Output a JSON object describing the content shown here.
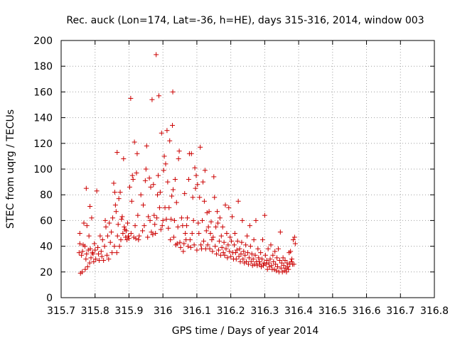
{
  "chart_data": {
    "type": "scatter",
    "title": "Rec. auck (Lon=174, Lat=-36, h=HE), days 315-316, 2014, window 003",
    "xlabel": "GPS time / Days of year 2014",
    "ylabel": "STEC from uqrg / TECUs",
    "xlim": [
      315.7,
      316.8
    ],
    "ylim": [
      0,
      200
    ],
    "xticks": [
      "315.7",
      "315.8",
      "315.9",
      "316",
      "316.1",
      "316.2",
      "316.3",
      "316.4",
      "316.5",
      "316.6",
      "316.7",
      "316.8"
    ],
    "yticks": [
      "0",
      "20",
      "40",
      "60",
      "80",
      "100",
      "120",
      "140",
      "160",
      "180",
      "200"
    ],
    "grid": true,
    "marker": "plus",
    "color": "#cc0000",
    "series": [
      {
        "points": [
          [
            315.753,
            35
          ],
          [
            315.755,
            42
          ],
          [
            315.755,
            50
          ],
          [
            315.757,
            19
          ],
          [
            315.76,
            33
          ],
          [
            315.762,
            20
          ],
          [
            315.763,
            36
          ],
          [
            315.765,
            41
          ],
          [
            315.767,
            58
          ],
          [
            315.77,
            40
          ],
          [
            315.771,
            22
          ],
          [
            315.773,
            30
          ],
          [
            315.774,
            85
          ],
          [
            315.775,
            34
          ],
          [
            315.776,
            56
          ],
          [
            315.778,
            24
          ],
          [
            315.78,
            37
          ],
          [
            315.782,
            48
          ],
          [
            315.784,
            27
          ],
          [
            315.785,
            71
          ],
          [
            315.786,
            38
          ],
          [
            315.788,
            31
          ],
          [
            315.79,
            62
          ],
          [
            315.792,
            35
          ],
          [
            315.794,
            34
          ],
          [
            315.796,
            28
          ],
          [
            315.798,
            42
          ],
          [
            315.8,
            37
          ],
          [
            315.802,
            30
          ],
          [
            315.805,
            83
          ],
          [
            315.808,
            39
          ],
          [
            315.81,
            34
          ],
          [
            315.812,
            29
          ],
          [
            315.815,
            48
          ],
          [
            315.818,
            36
          ],
          [
            315.82,
            32
          ],
          [
            315.822,
            45
          ],
          [
            315.825,
            29
          ],
          [
            315.828,
            40
          ],
          [
            315.83,
            60
          ],
          [
            315.832,
            55
          ],
          [
            315.835,
            33
          ],
          [
            315.837,
            48
          ],
          [
            315.84,
            30
          ],
          [
            315.842,
            58
          ],
          [
            315.845,
            43
          ],
          [
            315.848,
            51
          ],
          [
            315.85,
            35
          ],
          [
            315.852,
            62
          ],
          [
            315.855,
            89
          ],
          [
            315.857,
            40
          ],
          [
            315.858,
            82
          ],
          [
            315.86,
            72
          ],
          [
            315.862,
            67
          ],
          [
            315.864,
            35
          ],
          [
            315.865,
            113
          ],
          [
            315.866,
            48
          ],
          [
            315.868,
            57
          ],
          [
            315.87,
            77
          ],
          [
            315.872,
            40
          ],
          [
            315.874,
            82
          ],
          [
            315.876,
            45
          ],
          [
            315.878,
            61
          ],
          [
            315.88,
            63
          ],
          [
            315.882,
            50
          ],
          [
            315.884,
            108
          ],
          [
            315.886,
            55
          ],
          [
            315.888,
            53
          ],
          [
            315.89,
            47
          ],
          [
            315.892,
            52
          ],
          [
            315.894,
            45
          ],
          [
            315.896,
            58
          ],
          [
            315.898,
            48
          ],
          [
            315.9,
            46
          ],
          [
            315.902,
            86
          ],
          [
            315.905,
            155
          ],
          [
            315.906,
            50
          ],
          [
            315.908,
            75
          ],
          [
            315.91,
            95
          ],
          [
            315.912,
            92
          ],
          [
            315.914,
            47
          ],
          [
            315.916,
            121
          ],
          [
            315.918,
            56
          ],
          [
            315.92,
            46
          ],
          [
            315.922,
            97
          ],
          [
            315.924,
            112
          ],
          [
            315.926,
            64
          ],
          [
            315.928,
            45
          ],
          [
            315.93,
            48
          ],
          [
            315.935,
            80
          ],
          [
            315.94,
            52
          ],
          [
            315.942,
            72
          ],
          [
            315.945,
            56
          ],
          [
            315.948,
            91
          ],
          [
            315.95,
            100
          ],
          [
            315.952,
            118
          ],
          [
            315.955,
            47
          ],
          [
            315.957,
            63
          ],
          [
            315.96,
            93
          ],
          [
            315.962,
            60
          ],
          [
            315.964,
            86
          ],
          [
            315.966,
            51
          ],
          [
            315.968,
            154
          ],
          [
            315.97,
            49
          ],
          [
            315.972,
            88
          ],
          [
            315.974,
            64
          ],
          [
            315.976,
            57
          ],
          [
            315.978,
            50
          ],
          [
            315.98,
            189
          ],
          [
            315.982,
            62
          ],
          [
            315.984,
            80
          ],
          [
            315.986,
            95
          ],
          [
            315.988,
            157
          ],
          [
            315.99,
            70
          ],
          [
            315.992,
            82
          ],
          [
            315.994,
            53
          ],
          [
            315.996,
            128
          ],
          [
            315.998,
            56
          ],
          [
            316.0,
            60
          ],
          [
            316.002,
            99
          ],
          [
            316.004,
            110
          ],
          [
            316.006,
            70
          ],
          [
            316.008,
            104
          ],
          [
            316.01,
            61
          ],
          [
            316.012,
            130
          ],
          [
            316.014,
            90
          ],
          [
            316.016,
            54
          ],
          [
            316.018,
            70
          ],
          [
            316.02,
            122
          ],
          [
            316.022,
            45
          ],
          [
            316.024,
            61
          ],
          [
            316.026,
            79
          ],
          [
            316.028,
            134
          ],
          [
            316.029,
            160
          ],
          [
            316.03,
            84
          ],
          [
            316.032,
            47
          ],
          [
            316.034,
            60
          ],
          [
            316.036,
            92
          ],
          [
            316.038,
            41
          ],
          [
            316.04,
            74
          ],
          [
            316.042,
            42
          ],
          [
            316.044,
            55
          ],
          [
            316.046,
            108
          ],
          [
            316.048,
            114
          ],
          [
            316.05,
            43
          ],
          [
            316.052,
            39
          ],
          [
            316.055,
            62
          ],
          [
            316.058,
            56
          ],
          [
            316.06,
            36
          ],
          [
            316.062,
            42
          ],
          [
            316.064,
            81
          ],
          [
            316.066,
            50
          ],
          [
            316.068,
            45
          ],
          [
            316.07,
            56
          ],
          [
            316.072,
            62
          ],
          [
            316.074,
            40
          ],
          [
            316.076,
            92
          ],
          [
            316.078,
            112
          ],
          [
            316.08,
            45
          ],
          [
            316.082,
            39
          ],
          [
            316.084,
            112
          ],
          [
            316.086,
            50
          ],
          [
            316.088,
            78
          ],
          [
            316.09,
            60
          ],
          [
            316.092,
            41
          ],
          [
            316.094,
            101
          ],
          [
            316.096,
            85
          ],
          [
            316.098,
            95
          ],
          [
            316.1,
            37
          ],
          [
            316.102,
            88
          ],
          [
            316.104,
            58
          ],
          [
            316.106,
            50
          ],
          [
            316.108,
            78
          ],
          [
            316.11,
            117
          ],
          [
            316.112,
            41
          ],
          [
            316.114,
            38
          ],
          [
            316.116,
            60
          ],
          [
            316.118,
            90
          ],
          [
            316.12,
            44
          ],
          [
            316.122,
            75
          ],
          [
            316.124,
            99
          ],
          [
            316.126,
            38
          ],
          [
            316.128,
            52
          ],
          [
            316.13,
            66
          ],
          [
            316.132,
            41
          ],
          [
            316.134,
            55
          ],
          [
            316.136,
            67
          ],
          [
            316.138,
            38
          ],
          [
            316.14,
            50
          ],
          [
            316.142,
            59
          ],
          [
            316.144,
            45
          ],
          [
            316.146,
            36
          ],
          [
            316.148,
            47
          ],
          [
            316.15,
            94
          ],
          [
            316.152,
            78
          ],
          [
            316.154,
            40
          ],
          [
            316.156,
            55
          ],
          [
            316.158,
            34
          ],
          [
            316.16,
            67
          ],
          [
            316.162,
            58
          ],
          [
            316.164,
            37
          ],
          [
            316.166,
            44
          ],
          [
            316.168,
            62
          ],
          [
            316.17,
            33
          ],
          [
            316.172,
            48
          ],
          [
            316.174,
            39
          ],
          [
            316.176,
            55
          ],
          [
            316.178,
            35
          ],
          [
            316.18,
            43
          ],
          [
            316.182,
            33
          ],
          [
            316.184,
            72
          ],
          [
            316.186,
            38
          ],
          [
            316.188,
            50
          ],
          [
            316.19,
            31
          ],
          [
            316.192,
            41
          ],
          [
            316.194,
            70
          ],
          [
            316.196,
            36
          ],
          [
            316.198,
            47
          ],
          [
            316.2,
            32
          ],
          [
            316.202,
            44
          ],
          [
            316.204,
            63
          ],
          [
            316.206,
            35
          ],
          [
            316.208,
            30
          ],
          [
            316.21,
            41
          ],
          [
            316.212,
            50
          ],
          [
            316.214,
            35
          ],
          [
            316.216,
            30
          ],
          [
            316.218,
            37
          ],
          [
            316.22,
            44
          ],
          [
            316.222,
            75
          ],
          [
            316.224,
            32
          ],
          [
            316.226,
            38
          ],
          [
            316.228,
            28
          ],
          [
            316.23,
            34
          ],
          [
            316.232,
            43
          ],
          [
            316.234,
            60
          ],
          [
            316.236,
            30
          ],
          [
            316.238,
            36
          ],
          [
            316.24,
            27
          ],
          [
            316.242,
            33
          ],
          [
            316.244,
            41
          ],
          [
            316.246,
            28
          ],
          [
            316.248,
            48
          ],
          [
            316.25,
            35
          ],
          [
            316.252,
            26
          ],
          [
            316.254,
            31
          ],
          [
            316.256,
            56
          ],
          [
            316.258,
            40
          ],
          [
            316.26,
            28
          ],
          [
            316.262,
            34
          ],
          [
            316.264,
            25
          ],
          [
            316.266,
            30
          ],
          [
            316.268,
            45
          ],
          [
            316.27,
            26
          ],
          [
            316.272,
            33
          ],
          [
            316.274,
            60
          ],
          [
            316.276,
            28
          ],
          [
            316.278,
            25
          ],
          [
            316.28,
            38
          ],
          [
            316.282,
            31
          ],
          [
            316.284,
            28
          ],
          [
            316.286,
            26
          ],
          [
            316.288,
            35
          ],
          [
            316.29,
            24
          ],
          [
            316.292,
            30
          ],
          [
            316.294,
            45
          ],
          [
            316.296,
            25
          ],
          [
            316.298,
            27
          ],
          [
            316.3,
            64
          ],
          [
            316.302,
            33
          ],
          [
            316.304,
            26
          ],
          [
            316.306,
            29
          ],
          [
            316.308,
            22
          ],
          [
            316.31,
            38
          ],
          [
            316.312,
            27
          ],
          [
            316.314,
            24
          ],
          [
            316.316,
            30
          ],
          [
            316.318,
            41
          ],
          [
            316.32,
            25
          ],
          [
            316.322,
            22
          ],
          [
            316.324,
            33
          ],
          [
            316.326,
            28
          ],
          [
            316.328,
            22
          ],
          [
            316.33,
            36
          ],
          [
            316.332,
            26
          ],
          [
            316.334,
            21
          ],
          [
            316.336,
            31
          ],
          [
            316.338,
            24
          ],
          [
            316.34,
            38
          ],
          [
            316.342,
            20
          ],
          [
            316.344,
            29
          ],
          [
            316.346,
            51
          ],
          [
            316.348,
            23
          ],
          [
            316.35,
            27
          ],
          [
            316.352,
            20
          ],
          [
            316.354,
            31
          ],
          [
            316.356,
            25
          ],
          [
            316.358,
            21
          ],
          [
            316.36,
            29
          ],
          [
            316.362,
            23
          ],
          [
            316.364,
            20
          ],
          [
            316.366,
            27
          ],
          [
            316.368,
            24
          ],
          [
            316.37,
            22
          ],
          [
            316.372,
            35
          ],
          [
            316.374,
            26
          ],
          [
            316.376,
            36
          ],
          [
            316.378,
            28
          ],
          [
            316.38,
            30
          ],
          [
            316.382,
            26
          ],
          [
            316.384,
            45
          ],
          [
            316.386,
            26
          ],
          [
            316.388,
            47
          ],
          [
            316.39,
            42
          ]
        ]
      }
    ]
  }
}
